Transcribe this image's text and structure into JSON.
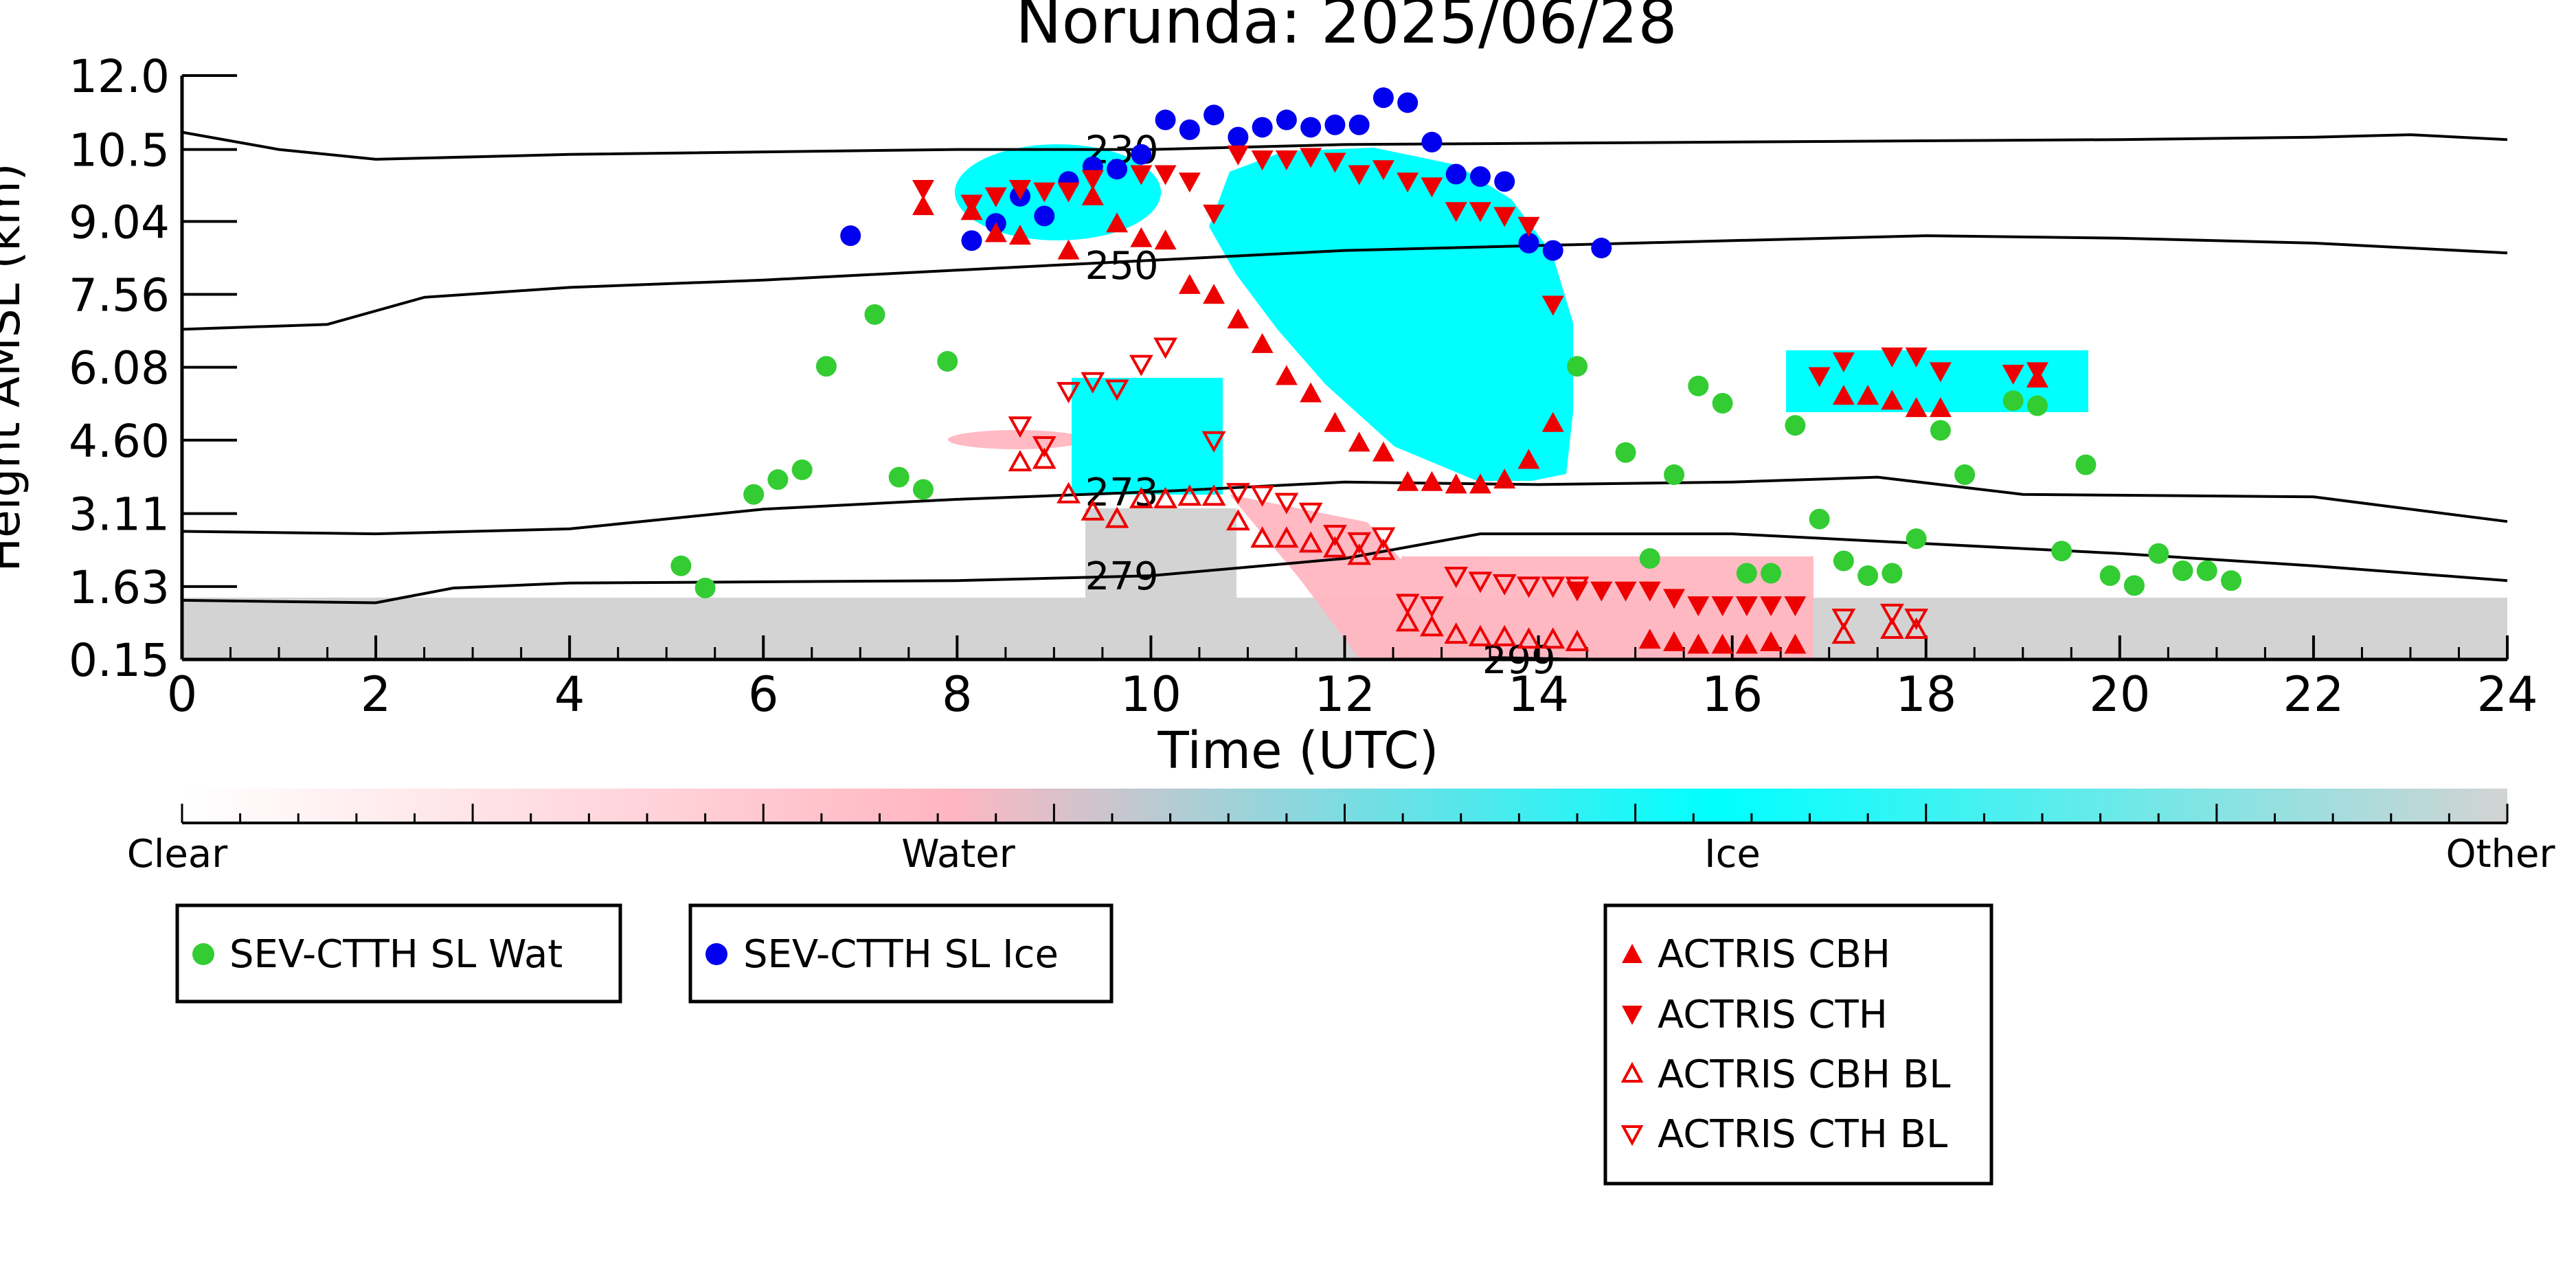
{
  "chart_data": {
    "type": "scatter",
    "title": "Norunda: 2025/06/28",
    "xlabel": "Time (UTC)",
    "ylabel": "Height AMSL (km)",
    "xlim": [
      0,
      24
    ],
    "ylim": [
      0.15,
      12.0
    ],
    "x_ticks": [
      "0",
      "2",
      "4",
      "6",
      "8",
      "10",
      "12",
      "14",
      "16",
      "18",
      "20",
      "22",
      "24"
    ],
    "y_ticks": [
      "0.15",
      "1.63",
      "3.11",
      "4.60",
      "6.08",
      "7.56",
      "9.04",
      "10.5",
      "12.0"
    ],
    "colorbar": {
      "labels": [
        "Clear",
        "Water",
        "Ice",
        "Other"
      ],
      "colors": [
        "#ffffff",
        "#ffb6c1",
        "#00ffff",
        "#d3d3d3"
      ]
    },
    "contours": [
      {
        "label": "230",
        "values": [
          [
            0,
            10.85
          ],
          [
            1,
            10.5
          ],
          [
            2,
            10.3
          ],
          [
            4,
            10.4
          ],
          [
            8,
            10.5
          ],
          [
            10,
            10.5
          ],
          [
            12,
            10.6
          ],
          [
            16,
            10.65
          ],
          [
            20,
            10.7
          ],
          [
            22,
            10.75
          ],
          [
            23,
            10.8
          ],
          [
            24,
            10.7
          ]
        ]
      },
      {
        "label": "250",
        "values": [
          [
            0,
            6.85
          ],
          [
            1.5,
            6.95
          ],
          [
            2.5,
            7.5
          ],
          [
            4,
            7.7
          ],
          [
            6,
            7.85
          ],
          [
            8,
            8.05
          ],
          [
            10,
            8.25
          ],
          [
            12,
            8.45
          ],
          [
            14,
            8.55
          ],
          [
            16,
            8.65
          ],
          [
            18,
            8.75
          ],
          [
            20,
            8.7
          ],
          [
            22,
            8.6
          ],
          [
            24,
            8.4
          ]
        ]
      },
      {
        "label": "273",
        "values": [
          [
            0,
            2.75
          ],
          [
            2,
            2.7
          ],
          [
            4,
            2.8
          ],
          [
            6,
            3.2
          ],
          [
            8,
            3.4
          ],
          [
            10,
            3.55
          ],
          [
            12,
            3.75
          ],
          [
            14,
            3.7
          ],
          [
            16,
            3.75
          ],
          [
            17.5,
            3.85
          ],
          [
            19,
            3.5
          ],
          [
            22,
            3.45
          ],
          [
            24,
            2.95
          ]
        ]
      },
      {
        "label": "279",
        "values": [
          [
            0,
            1.35
          ],
          [
            2,
            1.3
          ],
          [
            2.8,
            1.6
          ],
          [
            4,
            1.7
          ],
          [
            8,
            1.75
          ],
          [
            10,
            1.85
          ],
          [
            12,
            2.2
          ],
          [
            13.4,
            2.7
          ],
          [
            16,
            2.7
          ],
          [
            18,
            2.5
          ],
          [
            20,
            2.3
          ],
          [
            22,
            2.05
          ],
          [
            24,
            1.75
          ]
        ]
      },
      {
        "label": "299",
        "values": [
          [
            13.5,
            0.19
          ],
          [
            14.5,
            0.15
          ]
        ]
      }
    ],
    "series": [
      {
        "name": "SEV-CTTH SL Wat",
        "color": "#33cc33",
        "marker": "circle",
        "points": [
          [
            5.15,
            2.05
          ],
          [
            5.4,
            1.6
          ],
          [
            5.9,
            3.5
          ],
          [
            6.15,
            3.8
          ],
          [
            6.4,
            4.0
          ],
          [
            6.65,
            6.1
          ],
          [
            7.15,
            7.15
          ],
          [
            7.4,
            3.85
          ],
          [
            7.65,
            3.6
          ],
          [
            7.9,
            6.2
          ],
          [
            14.4,
            6.1
          ],
          [
            14.9,
            4.35
          ],
          [
            15.4,
            3.9
          ],
          [
            15.15,
            2.2
          ],
          [
            15.65,
            5.7
          ],
          [
            15.9,
            5.35
          ],
          [
            16.15,
            1.9
          ],
          [
            16.4,
            1.9
          ],
          [
            16.65,
            4.9
          ],
          [
            16.9,
            3.0
          ],
          [
            17.15,
            2.15
          ],
          [
            17.4,
            1.85
          ],
          [
            17.65,
            1.9
          ],
          [
            17.9,
            2.6
          ],
          [
            18.15,
            4.8
          ],
          [
            18.4,
            3.9
          ],
          [
            18.9,
            5.4
          ],
          [
            19.15,
            5.3
          ],
          [
            19.4,
            2.35
          ],
          [
            19.65,
            4.1
          ],
          [
            19.9,
            1.85
          ],
          [
            20.15,
            1.65
          ],
          [
            20.4,
            2.3
          ],
          [
            20.65,
            1.95
          ],
          [
            20.9,
            1.95
          ],
          [
            21.15,
            1.75
          ]
        ]
      },
      {
        "name": "SEV-CTTH SL Ice",
        "color": "#0000ee",
        "marker": "circle",
        "points": [
          [
            6.9,
            8.75
          ],
          [
            8.15,
            8.65
          ],
          [
            8.4,
            9.0
          ],
          [
            8.65,
            9.55
          ],
          [
            8.9,
            9.15
          ],
          [
            9.15,
            9.85
          ],
          [
            9.4,
            10.15
          ],
          [
            9.65,
            10.1
          ],
          [
            9.9,
            10.4
          ],
          [
            10.15,
            11.1
          ],
          [
            10.4,
            10.9
          ],
          [
            10.65,
            11.2
          ],
          [
            10.9,
            10.75
          ],
          [
            11.15,
            10.95
          ],
          [
            11.4,
            11.1
          ],
          [
            11.65,
            10.95
          ],
          [
            11.9,
            11.0
          ],
          [
            12.15,
            11.0
          ],
          [
            12.4,
            11.55
          ],
          [
            12.65,
            11.45
          ],
          [
            12.9,
            10.65
          ],
          [
            13.15,
            10.0
          ],
          [
            13.4,
            9.95
          ],
          [
            13.65,
            9.85
          ],
          [
            13.9,
            8.6
          ],
          [
            14.15,
            8.45
          ],
          [
            14.65,
            8.5
          ]
        ]
      },
      {
        "name": "ACTRIS CBH",
        "color": "#ee0000",
        "marker": "triangle-up-filled",
        "points": [
          [
            7.65,
            9.35
          ],
          [
            8.15,
            9.25
          ],
          [
            8.4,
            8.8
          ],
          [
            8.65,
            8.75
          ],
          [
            9.15,
            8.45
          ],
          [
            9.4,
            9.55
          ],
          [
            9.65,
            9.0
          ],
          [
            9.9,
            8.7
          ],
          [
            10.15,
            8.65
          ],
          [
            10.4,
            7.75
          ],
          [
            10.65,
            7.55
          ],
          [
            10.9,
            7.05
          ],
          [
            11.15,
            6.55
          ],
          [
            11.4,
            5.9
          ],
          [
            11.65,
            5.55
          ],
          [
            11.9,
            4.95
          ],
          [
            12.15,
            4.55
          ],
          [
            12.4,
            4.35
          ],
          [
            12.65,
            3.75
          ],
          [
            12.9,
            3.75
          ],
          [
            13.15,
            3.7
          ],
          [
            13.4,
            3.7
          ],
          [
            13.65,
            3.8
          ],
          [
            13.9,
            4.2
          ],
          [
            14.15,
            4.95
          ],
          [
            15.15,
            0.55
          ],
          [
            15.4,
            0.5
          ],
          [
            15.65,
            0.45
          ],
          [
            15.9,
            0.45
          ],
          [
            16.15,
            0.45
          ],
          [
            16.4,
            0.5
          ],
          [
            16.65,
            0.45
          ],
          [
            17.15,
            5.5
          ],
          [
            17.4,
            5.5
          ],
          [
            17.65,
            5.4
          ],
          [
            17.9,
            5.25
          ],
          [
            18.15,
            5.25
          ],
          [
            19.15,
            5.85
          ]
        ]
      },
      {
        "name": "ACTRIS CTH",
        "color": "#ee0000",
        "marker": "triangle-down-filled",
        "points": [
          [
            7.65,
            9.7
          ],
          [
            8.15,
            9.4
          ],
          [
            8.4,
            9.55
          ],
          [
            8.65,
            9.7
          ],
          [
            8.9,
            9.65
          ],
          [
            9.15,
            9.65
          ],
          [
            9.4,
            9.9
          ],
          [
            9.9,
            10.0
          ],
          [
            10.15,
            10.0
          ],
          [
            10.4,
            9.85
          ],
          [
            10.65,
            9.2
          ],
          [
            10.9,
            10.4
          ],
          [
            11.15,
            10.3
          ],
          [
            11.4,
            10.3
          ],
          [
            11.65,
            10.35
          ],
          [
            11.9,
            10.25
          ],
          [
            12.15,
            10.0
          ],
          [
            12.4,
            10.1
          ],
          [
            12.65,
            9.85
          ],
          [
            12.9,
            9.75
          ],
          [
            13.15,
            9.25
          ],
          [
            13.4,
            9.25
          ],
          [
            13.65,
            9.15
          ],
          [
            13.9,
            8.95
          ],
          [
            14.15,
            7.35
          ],
          [
            14.4,
            1.55
          ],
          [
            14.65,
            1.55
          ],
          [
            14.9,
            1.55
          ],
          [
            15.15,
            1.55
          ],
          [
            15.4,
            1.4
          ],
          [
            15.65,
            1.25
          ],
          [
            15.9,
            1.25
          ],
          [
            16.15,
            1.25
          ],
          [
            16.4,
            1.25
          ],
          [
            16.65,
            1.25
          ],
          [
            16.9,
            5.9
          ],
          [
            17.15,
            6.2
          ],
          [
            17.65,
            6.3
          ],
          [
            17.9,
            6.3
          ],
          [
            18.15,
            6.0
          ],
          [
            18.9,
            5.95
          ],
          [
            19.15,
            6.0
          ]
        ]
      },
      {
        "name": "ACTRIS CBH BL",
        "color": "#ee0000",
        "marker": "triangle-up-open",
        "points": [
          [
            8.65,
            4.15
          ],
          [
            8.9,
            4.2
          ],
          [
            9.15,
            3.5
          ],
          [
            9.4,
            3.15
          ],
          [
            9.65,
            3.0
          ],
          [
            9.9,
            3.4
          ],
          [
            10.15,
            3.4
          ],
          [
            10.4,
            3.45
          ],
          [
            10.65,
            3.45
          ],
          [
            10.9,
            2.95
          ],
          [
            11.15,
            2.6
          ],
          [
            11.4,
            2.6
          ],
          [
            11.65,
            2.5
          ],
          [
            11.9,
            2.4
          ],
          [
            12.15,
            2.25
          ],
          [
            12.4,
            2.35
          ],
          [
            12.65,
            0.9
          ],
          [
            12.9,
            0.8
          ],
          [
            13.15,
            0.65
          ],
          [
            13.4,
            0.6
          ],
          [
            13.65,
            0.6
          ],
          [
            13.9,
            0.55
          ],
          [
            14.15,
            0.55
          ],
          [
            14.4,
            0.5
          ],
          [
            17.15,
            0.65
          ],
          [
            17.65,
            0.75
          ],
          [
            17.9,
            0.75
          ]
        ]
      },
      {
        "name": "ACTRIS CTH BL",
        "color": "#ee0000",
        "marker": "triangle-down-open",
        "points": [
          [
            8.65,
            4.9
          ],
          [
            8.9,
            4.5
          ],
          [
            9.15,
            5.6
          ],
          [
            9.4,
            5.8
          ],
          [
            9.65,
            5.65
          ],
          [
            9.9,
            6.15
          ],
          [
            10.15,
            6.5
          ],
          [
            10.65,
            4.6
          ],
          [
            10.9,
            3.55
          ],
          [
            11.15,
            3.5
          ],
          [
            11.4,
            3.35
          ],
          [
            11.65,
            3.15
          ],
          [
            11.9,
            2.7
          ],
          [
            12.15,
            2.55
          ],
          [
            12.4,
            2.65
          ],
          [
            12.65,
            1.3
          ],
          [
            12.9,
            1.25
          ],
          [
            13.15,
            1.85
          ],
          [
            13.4,
            1.75
          ],
          [
            13.65,
            1.7
          ],
          [
            13.9,
            1.65
          ],
          [
            14.15,
            1.65
          ],
          [
            14.4,
            1.65
          ],
          [
            17.15,
            1.0
          ],
          [
            17.65,
            1.1
          ],
          [
            17.9,
            1.0
          ]
        ]
      }
    ]
  }
}
